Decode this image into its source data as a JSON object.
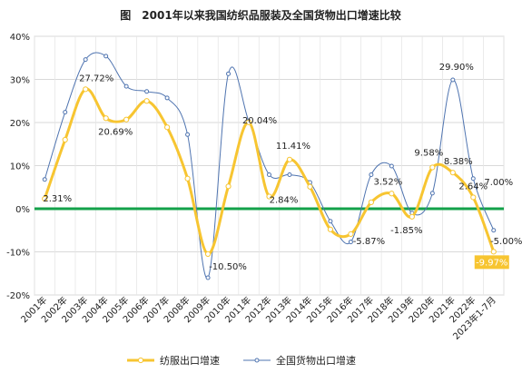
{
  "chart_data": {
    "type": "line",
    "title": "图　2001年以来我国纺织品服装及全国货物出口增速比较",
    "categories": [
      "2001年",
      "2002年",
      "2003年",
      "2004年",
      "2005年",
      "2006年",
      "2007年",
      "2008年",
      "2009年",
      "2010年",
      "2011年",
      "2012年",
      "2013年",
      "2014年",
      "2015年",
      "2016年",
      "2017年",
      "2018年",
      "2019年",
      "2020年",
      "2021年",
      "2022年",
      "2023年1-7月"
    ],
    "ylim": [
      -20,
      40
    ],
    "yticks": [
      "-20%",
      "-10%",
      "0%",
      "10%",
      "20%",
      "30%",
      "40%"
    ],
    "grid": true,
    "legend_position": "bottom",
    "series": [
      {
        "name": "纺服出口增速",
        "color": "#F7C531",
        "values": [
          2.31,
          16.0,
          27.72,
          21.0,
          20.69,
          25.0,
          18.9,
          7.0,
          -10.5,
          5.2,
          20.04,
          2.84,
          11.41,
          5.1,
          -4.8,
          -5.87,
          1.5,
          3.52,
          -1.85,
          9.58,
          8.38,
          2.64,
          -9.97
        ]
      },
      {
        "name": "全国货物出口增速",
        "color": "#4F74B0",
        "values": [
          6.8,
          22.4,
          34.6,
          35.4,
          28.4,
          27.2,
          25.7,
          17.2,
          -16.0,
          31.3,
          20.3,
          7.9,
          7.9,
          6.1,
          -2.9,
          -7.7,
          7.9,
          9.9,
          -1.0,
          3.6,
          29.9,
          7.0,
          -5.0
        ]
      }
    ],
    "annotations": [
      {
        "series": 0,
        "index": 0,
        "text": "2.31%"
      },
      {
        "series": 0,
        "index": 2,
        "text": "27.72%"
      },
      {
        "series": 0,
        "index": 4,
        "text": "20.69%"
      },
      {
        "series": 0,
        "index": 8,
        "text": "-10.50%"
      },
      {
        "series": 0,
        "index": 10,
        "text": "20.04%"
      },
      {
        "series": 0,
        "index": 11,
        "text": "2.84%"
      },
      {
        "series": 0,
        "index": 12,
        "text": "11.41%"
      },
      {
        "series": 0,
        "index": 15,
        "text": "-5.87%"
      },
      {
        "series": 0,
        "index": 17,
        "text": "3.52%"
      },
      {
        "series": 0,
        "index": 18,
        "text": "-1.85%"
      },
      {
        "series": 0,
        "index": 19,
        "text": "9.58%"
      },
      {
        "series": 0,
        "index": 20,
        "text": "8.38%"
      },
      {
        "series": 0,
        "index": 21,
        "text": "2.64%"
      },
      {
        "series": 0,
        "index": 22,
        "text": "-9.97%",
        "highlight": true
      },
      {
        "series": 1,
        "index": 20,
        "text": "29.90%"
      },
      {
        "series": 1,
        "index": 21,
        "text": "7.00%"
      },
      {
        "series": 1,
        "index": 22,
        "text": "-5.00%"
      }
    ],
    "zero_line_color": "#13A14A"
  }
}
